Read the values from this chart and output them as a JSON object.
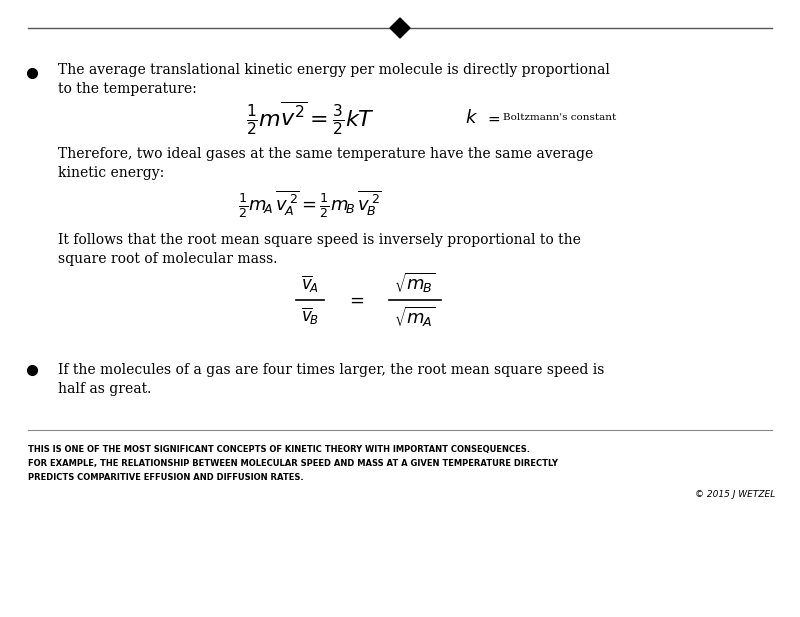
{
  "bg_color": "#ffffff",
  "text_color": "#000000",
  "bullet1_text1": "The average translational kinetic energy per molecule is directly proportional",
  "bullet1_text2": "to the temperature:",
  "bullet1_text3": "Therefore, two ideal gases at the same temperature have the same average",
  "bullet1_text4": "kinetic energy:",
  "bullet1_text5": "It follows that the root mean square speed is inversely proportional to the",
  "bullet1_text6": "square root of molecular mass.",
  "bullet2_text1": "If the molecules of a gas are four times larger, the root mean square speed is",
  "bullet2_text2": "half as great.",
  "footer_line1": "THIS IS ONE OF THE MOST SIGNIFICANT CONCEPTS OF KINETIC THEORY WITH IMPORTANT CONSEQUENCES.",
  "footer_line2": "FOR EXAMPLE, THE RELATIONSHIP BETWEEN MOLECULAR SPEED AND MASS AT A GIVEN TEMPERATURE DIRECTLY",
  "footer_line3": "PREDICTS COMPARITIVE EFFUSION AND DIFFUSION RATES.",
  "copyright": "© 2015 J WETZEL",
  "fig_w": 8.0,
  "fig_h": 6.17,
  "dpi": 100
}
